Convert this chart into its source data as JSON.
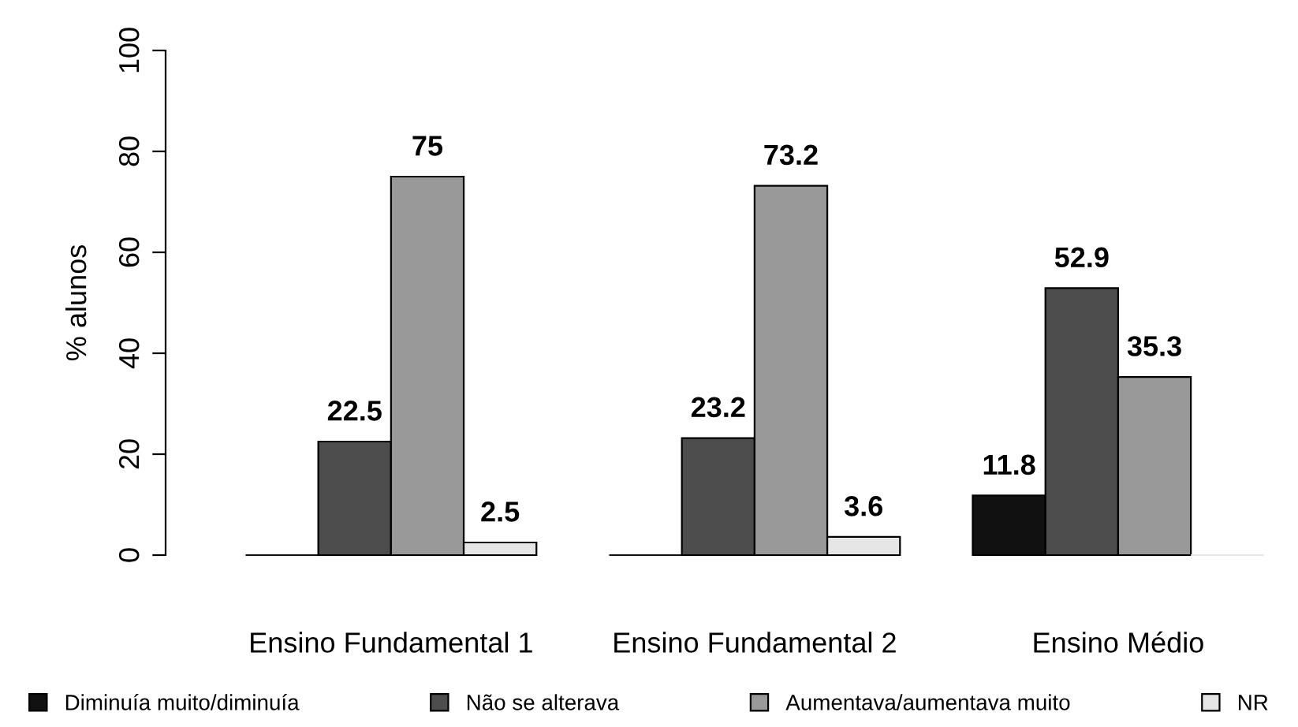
{
  "chart_data": {
    "type": "bar",
    "ylabel": "% alunos",
    "categories": [
      "Ensino Fundamental 1",
      "Ensino Fundamental 2",
      "Ensino Médio"
    ],
    "series": [
      {
        "name": "Diminuía muito/diminuía",
        "color": "#111111",
        "values": [
          0,
          0,
          11.8
        ],
        "value_labels": [
          null,
          null,
          "11.8"
        ]
      },
      {
        "name": "Não se alterava",
        "color": "#4d4d4d",
        "values": [
          22.5,
          23.2,
          52.9
        ],
        "value_labels": [
          "22.5",
          "23.2",
          "52.9"
        ]
      },
      {
        "name": "Aumentava/aumentava muito",
        "color": "#999999",
        "values": [
          75,
          73.2,
          35.3
        ],
        "value_labels": [
          "75",
          "73.2",
          "35.3"
        ]
      },
      {
        "name": "NR",
        "color": "#e6e6e6",
        "values": [
          2.5,
          3.6,
          0
        ],
        "value_labels": [
          "2.5",
          "3.6",
          null
        ]
      }
    ],
    "ylim": [
      0,
      100
    ],
    "yticks": [
      0,
      20,
      40,
      60,
      80,
      100
    ],
    "grid": false,
    "legend": "bottom"
  }
}
